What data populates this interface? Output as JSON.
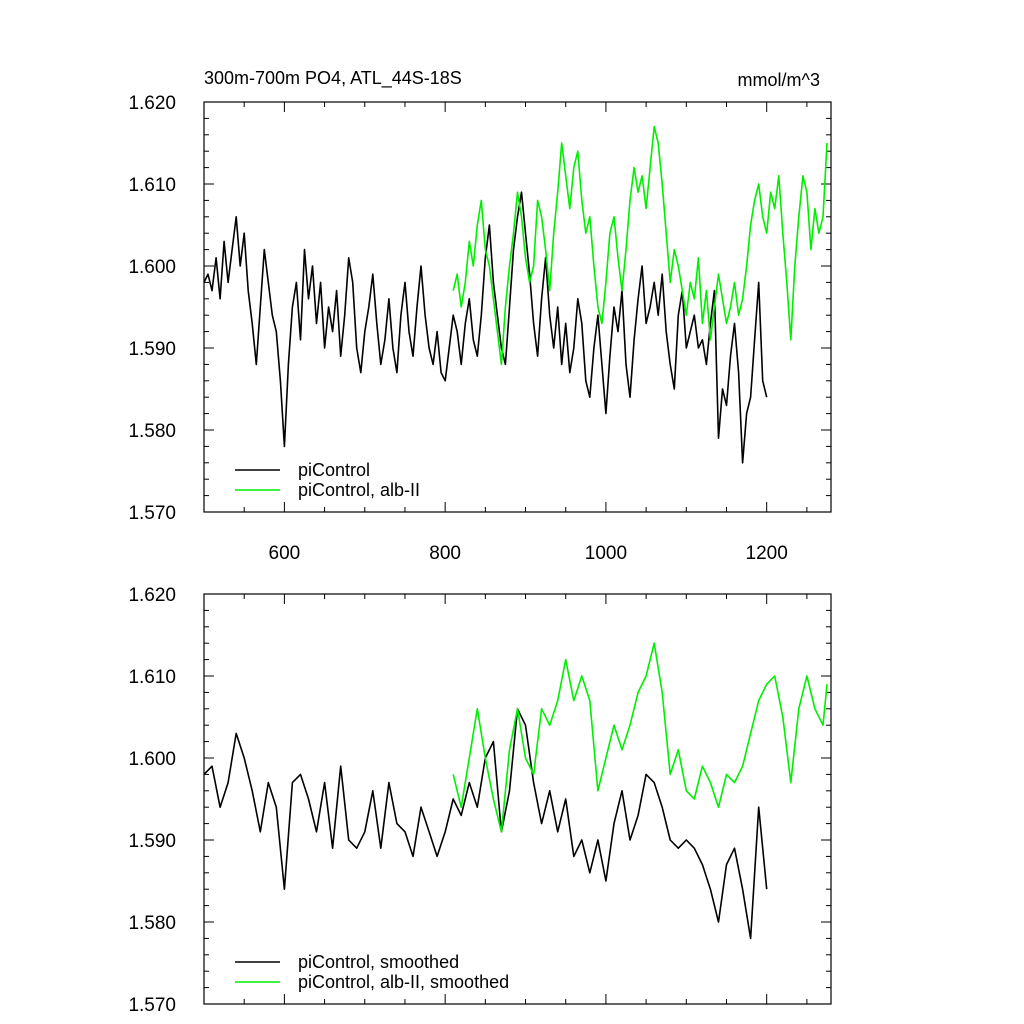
{
  "chart_data": [
    {
      "type": "line",
      "title": "300m-700m PO4, ATL_44S-18S",
      "unit_label": "mmol/m^3",
      "xlim": [
        500,
        1280
      ],
      "ylim": [
        1.57,
        1.62
      ],
      "xticks": [
        600,
        800,
        1000,
        1200
      ],
      "xtick_labels": [
        "600",
        "800",
        "1000",
        "1200"
      ],
      "yticks": [
        1.57,
        1.58,
        1.59,
        1.6,
        1.61,
        1.62
      ],
      "ytick_labels": [
        "1.570",
        "1.580",
        "1.590",
        "1.600",
        "1.610",
        "1.620"
      ],
      "legend_position": "bottom-left",
      "grid": false,
      "series": [
        {
          "name": "piControl",
          "color": "#000000",
          "x": [
            500,
            505,
            510,
            515,
            520,
            525,
            530,
            535,
            540,
            545,
            550,
            555,
            560,
            565,
            570,
            575,
            580,
            585,
            590,
            595,
            600,
            605,
            610,
            615,
            620,
            625,
            630,
            635,
            640,
            645,
            650,
            655,
            660,
            665,
            670,
            675,
            680,
            685,
            690,
            695,
            700,
            705,
            710,
            715,
            720,
            725,
            730,
            735,
            740,
            745,
            750,
            755,
            760,
            765,
            770,
            775,
            780,
            785,
            790,
            795,
            800,
            805,
            810,
            815,
            820,
            825,
            830,
            835,
            840,
            845,
            850,
            855,
            860,
            865,
            870,
            875,
            880,
            885,
            890,
            895,
            900,
            905,
            910,
            915,
            920,
            925,
            930,
            935,
            940,
            945,
            950,
            955,
            960,
            965,
            970,
            975,
            980,
            985,
            990,
            995,
            1000,
            1005,
            1010,
            1015,
            1020,
            1025,
            1030,
            1035,
            1040,
            1045,
            1050,
            1055,
            1060,
            1065,
            1070,
            1075,
            1080,
            1085,
            1090,
            1095,
            1100,
            1105,
            1110,
            1115,
            1120,
            1125,
            1130,
            1135,
            1140,
            1145,
            1150,
            1155,
            1160,
            1165,
            1170,
            1175,
            1180,
            1185,
            1190,
            1195,
            1200
          ],
          "y": [
            1.598,
            1.599,
            1.597,
            1.601,
            1.596,
            1.603,
            1.598,
            1.602,
            1.606,
            1.6,
            1.604,
            1.597,
            1.593,
            1.588,
            1.595,
            1.602,
            1.598,
            1.594,
            1.592,
            1.586,
            1.578,
            1.588,
            1.595,
            1.598,
            1.591,
            1.602,
            1.596,
            1.6,
            1.593,
            1.598,
            1.59,
            1.595,
            1.592,
            1.597,
            1.589,
            1.594,
            1.601,
            1.598,
            1.59,
            1.587,
            1.592,
            1.595,
            1.599,
            1.593,
            1.588,
            1.591,
            1.596,
            1.59,
            1.587,
            1.594,
            1.598,
            1.592,
            1.589,
            1.595,
            1.6,
            1.594,
            1.59,
            1.588,
            1.592,
            1.587,
            1.586,
            1.59,
            1.594,
            1.592,
            1.588,
            1.593,
            1.596,
            1.591,
            1.589,
            1.594,
            1.601,
            1.605,
            1.598,
            1.594,
            1.59,
            1.588,
            1.595,
            1.602,
            1.606,
            1.609,
            1.604,
            1.599,
            1.593,
            1.589,
            1.596,
            1.601,
            1.594,
            1.59,
            1.595,
            1.588,
            1.593,
            1.587,
            1.59,
            1.596,
            1.593,
            1.586,
            1.584,
            1.59,
            1.594,
            1.588,
            1.582,
            1.589,
            1.595,
            1.592,
            1.597,
            1.588,
            1.584,
            1.591,
            1.596,
            1.6,
            1.593,
            1.595,
            1.598,
            1.594,
            1.599,
            1.592,
            1.588,
            1.585,
            1.594,
            1.597,
            1.59,
            1.592,
            1.594,
            1.59,
            1.591,
            1.588,
            1.593,
            1.597,
            1.579,
            1.585,
            1.583,
            1.589,
            1.593,
            1.587,
            1.576,
            1.582,
            1.584,
            1.591,
            1.598,
            1.586,
            1.584
          ]
        },
        {
          "name": "piControl, alb-II",
          "color": "#00ee00",
          "x": [
            810,
            815,
            820,
            825,
            830,
            835,
            840,
            845,
            850,
            855,
            860,
            865,
            870,
            875,
            880,
            885,
            890,
            895,
            900,
            905,
            910,
            915,
            920,
            925,
            930,
            935,
            940,
            945,
            950,
            955,
            960,
            965,
            970,
            975,
            980,
            985,
            990,
            995,
            1000,
            1005,
            1010,
            1015,
            1020,
            1025,
            1030,
            1035,
            1040,
            1045,
            1050,
            1055,
            1060,
            1065,
            1070,
            1075,
            1080,
            1085,
            1090,
            1095,
            1100,
            1105,
            1110,
            1115,
            1120,
            1125,
            1130,
            1135,
            1140,
            1145,
            1150,
            1155,
            1160,
            1165,
            1170,
            1175,
            1180,
            1185,
            1190,
            1195,
            1200,
            1205,
            1210,
            1215,
            1220,
            1225,
            1230,
            1235,
            1240,
            1245,
            1250,
            1255,
            1260,
            1265,
            1270,
            1275
          ],
          "y": [
            1.597,
            1.599,
            1.595,
            1.598,
            1.603,
            1.6,
            1.605,
            1.608,
            1.602,
            1.6,
            1.596,
            1.592,
            1.588,
            1.595,
            1.6,
            1.604,
            1.609,
            1.606,
            1.601,
            1.598,
            1.6,
            1.608,
            1.606,
            1.602,
            1.597,
            1.604,
            1.609,
            1.615,
            1.611,
            1.607,
            1.612,
            1.614,
            1.608,
            1.604,
            1.606,
            1.6,
            1.595,
            1.593,
            1.598,
            1.604,
            1.606,
            1.601,
            1.597,
            1.602,
            1.608,
            1.612,
            1.609,
            1.611,
            1.607,
            1.612,
            1.617,
            1.615,
            1.61,
            1.604,
            1.598,
            1.602,
            1.6,
            1.597,
            1.594,
            1.598,
            1.596,
            1.601,
            1.593,
            1.597,
            1.591,
            1.595,
            1.599,
            1.596,
            1.593,
            1.595,
            1.598,
            1.594,
            1.596,
            1.6,
            1.605,
            1.608,
            1.61,
            1.606,
            1.604,
            1.609,
            1.607,
            1.611,
            1.604,
            1.598,
            1.591,
            1.6,
            1.606,
            1.611,
            1.609,
            1.602,
            1.607,
            1.604,
            1.606,
            1.615
          ]
        }
      ]
    },
    {
      "type": "line",
      "xlim": [
        500,
        1280
      ],
      "ylim": [
        1.57,
        1.62
      ],
      "xticks": [
        600,
        800,
        1000,
        1200
      ],
      "yticks": [
        1.57,
        1.58,
        1.59,
        1.6,
        1.61,
        1.62
      ],
      "ytick_labels": [
        "1.570",
        "1.580",
        "1.590",
        "1.600",
        "1.610",
        "1.620"
      ],
      "legend_position": "bottom-left",
      "grid": false,
      "series": [
        {
          "name": "piControl, smoothed",
          "color": "#000000",
          "x": [
            500,
            510,
            520,
            530,
            540,
            550,
            560,
            570,
            580,
            590,
            600,
            610,
            620,
            630,
            640,
            650,
            660,
            670,
            680,
            690,
            700,
            710,
            720,
            730,
            740,
            750,
            760,
            770,
            780,
            790,
            800,
            810,
            820,
            830,
            840,
            850,
            860,
            870,
            880,
            890,
            900,
            910,
            920,
            930,
            940,
            950,
            960,
            970,
            980,
            990,
            1000,
            1010,
            1020,
            1030,
            1040,
            1050,
            1060,
            1070,
            1080,
            1090,
            1100,
            1110,
            1120,
            1130,
            1140,
            1150,
            1160,
            1170,
            1180,
            1190,
            1200
          ],
          "y": [
            1.598,
            1.599,
            1.594,
            1.597,
            1.603,
            1.6,
            1.596,
            1.591,
            1.597,
            1.594,
            1.584,
            1.597,
            1.598,
            1.595,
            1.591,
            1.597,
            1.589,
            1.599,
            1.59,
            1.589,
            1.591,
            1.596,
            1.589,
            1.597,
            1.592,
            1.591,
            1.588,
            1.594,
            1.591,
            1.588,
            1.591,
            1.595,
            1.593,
            1.597,
            1.594,
            1.6,
            1.602,
            1.591,
            1.596,
            1.606,
            1.604,
            1.597,
            1.592,
            1.596,
            1.591,
            1.595,
            1.588,
            1.59,
            1.586,
            1.59,
            1.585,
            1.592,
            1.596,
            1.59,
            1.593,
            1.598,
            1.597,
            1.594,
            1.59,
            1.589,
            1.59,
            1.589,
            1.587,
            1.584,
            1.58,
            1.587,
            1.589,
            1.584,
            1.578,
            1.594,
            1.584
          ]
        },
        {
          "name": "piControl, alb-II, smoothed",
          "color": "#00ee00",
          "x": [
            810,
            820,
            830,
            840,
            850,
            860,
            870,
            880,
            890,
            900,
            910,
            920,
            930,
            940,
            950,
            960,
            970,
            980,
            990,
            1000,
            1010,
            1020,
            1030,
            1040,
            1050,
            1060,
            1070,
            1080,
            1090,
            1100,
            1110,
            1120,
            1130,
            1140,
            1150,
            1160,
            1170,
            1180,
            1190,
            1200,
            1210,
            1220,
            1230,
            1240,
            1250,
            1260,
            1270,
            1275
          ],
          "y": [
            1.598,
            1.594,
            1.6,
            1.606,
            1.6,
            1.595,
            1.591,
            1.601,
            1.606,
            1.6,
            1.598,
            1.606,
            1.604,
            1.607,
            1.612,
            1.607,
            1.61,
            1.607,
            1.596,
            1.6,
            1.604,
            1.601,
            1.604,
            1.608,
            1.61,
            1.614,
            1.608,
            1.598,
            1.601,
            1.596,
            1.595,
            1.599,
            1.597,
            1.594,
            1.598,
            1.597,
            1.599,
            1.603,
            1.607,
            1.609,
            1.61,
            1.605,
            1.597,
            1.606,
            1.61,
            1.606,
            1.604,
            1.609
          ]
        }
      ]
    }
  ]
}
